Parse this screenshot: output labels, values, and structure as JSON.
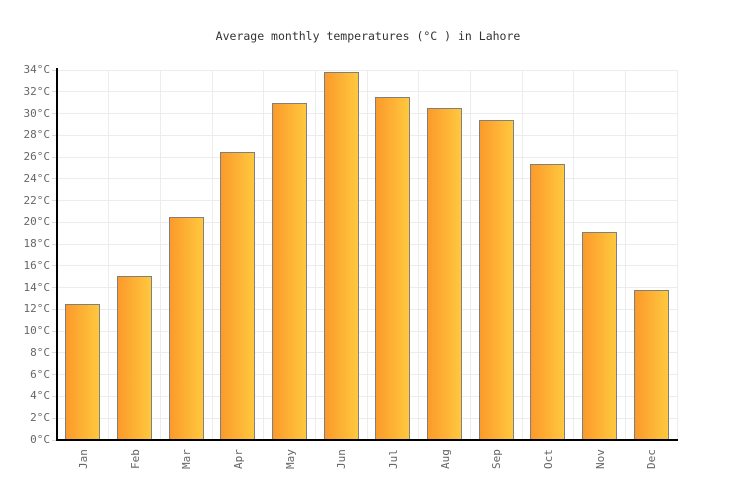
{
  "chart_data": {
    "type": "bar",
    "title": "Average monthly temperatures (°C ) in Lahore",
    "categories": [
      "Jan",
      "Feb",
      "Mar",
      "Apr",
      "May",
      "Jun",
      "Jul",
      "Aug",
      "Sep",
      "Oct",
      "Nov",
      "Dec"
    ],
    "values": [
      12.5,
      15.1,
      20.5,
      26.5,
      31.0,
      33.8,
      31.5,
      30.5,
      29.4,
      25.4,
      19.1,
      13.8
    ],
    "unit": "°C",
    "xlabel": "",
    "ylabel": "",
    "ylim": [
      0,
      34
    ],
    "ytick_step": 2,
    "ytick_suffix": "°C",
    "grid": true,
    "legend": "none",
    "x_label_rotation": -90,
    "colors": {
      "bar_gradient_left": "#fb9a2b",
      "bar_gradient_right": "#ffc83e",
      "bar_border": "#7f7f7f",
      "gridline": "#ececec",
      "tick": "#dadada",
      "axis_line": "#000000",
      "axis_label": "#666666",
      "title": "#333333",
      "background": "#ffffff"
    }
  }
}
